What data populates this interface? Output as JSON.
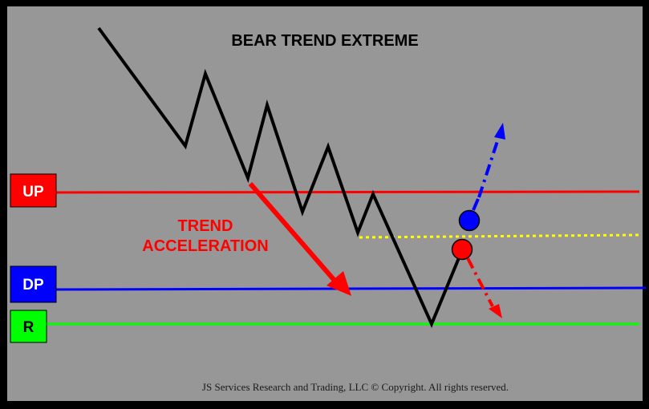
{
  "title": "BEAR TREND EXTREME",
  "annotation": {
    "line1": "TREND",
    "line2": "ACCELERATION"
  },
  "levels": {
    "up": {
      "label": "UP",
      "color": "#ff0000",
      "text_color": "#ffffff"
    },
    "dp": {
      "label": "DP",
      "color": "#0000ff",
      "text_color": "#ffffff"
    },
    "r": {
      "label": "R",
      "color": "#00ff00",
      "text_color": "#000000"
    }
  },
  "copyright": "JS Services Research and Trading, LLC © Copyright. All rights reserved.",
  "colors": {
    "background": "#979797",
    "frame": "#000000",
    "price_line": "#000000",
    "dotted_line": "#ffff00",
    "blue_marker": "#0000ff",
    "red_marker": "#ff0000"
  }
}
